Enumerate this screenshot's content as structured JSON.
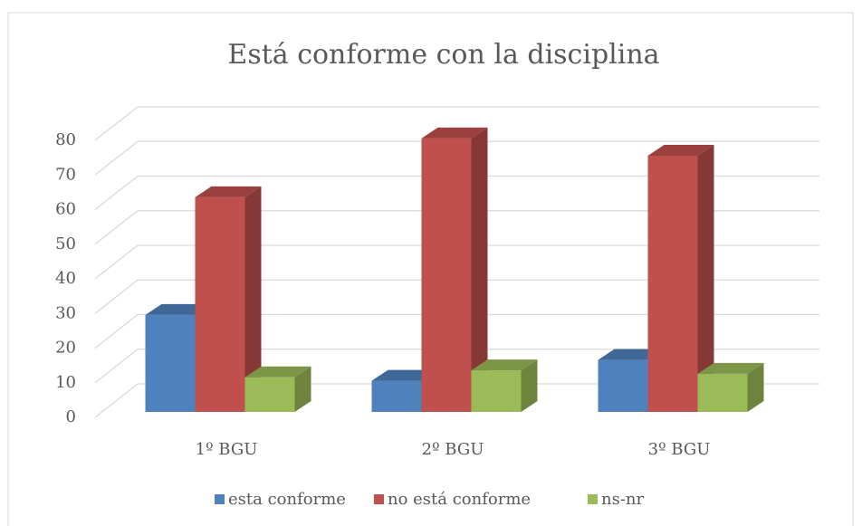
{
  "chart_data": {
    "type": "bar3d",
    "title": "Está conforme con la disciplina",
    "categories": [
      "1º BGU",
      "2º BGU",
      "3º BGU"
    ],
    "series": [
      {
        "name": "esta conforme",
        "color": "#4f81bd",
        "values": [
          28,
          9,
          15
        ]
      },
      {
        "name": "no está conforme",
        "color": "#c0504d",
        "values": [
          62,
          79,
          74
        ]
      },
      {
        "name": "ns-nr",
        "color": "#9bbb59",
        "values": [
          10,
          12,
          11
        ]
      }
    ],
    "ylim": [
      0,
      80
    ],
    "yticks": [
      0,
      10,
      20,
      30,
      40,
      50,
      60,
      70,
      80
    ],
    "grid": true,
    "legend": "bottom"
  }
}
